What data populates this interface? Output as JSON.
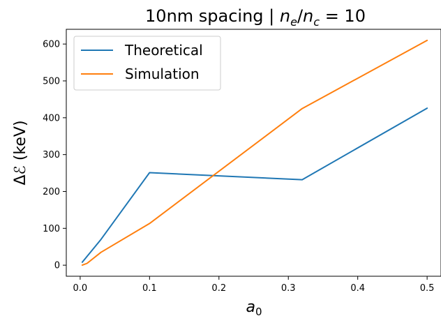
{
  "chart_data": {
    "type": "line",
    "title": "10nm spacing | nₑ/n꜀ = 10",
    "title_parts": {
      "prefix": "10nm spacing | ",
      "n": "n",
      "sub_e": "e",
      "slash": "/",
      "sub_c": "c",
      "suffix": " = 10"
    },
    "xlabel": "a₀",
    "xlabel_parts": {
      "main": "a",
      "sub": "0"
    },
    "ylabel": "Δℰ  (keV)",
    "xlim": [
      -0.02,
      0.52
    ],
    "ylim": [
      -30,
      640
    ],
    "xticks": [
      0.0,
      0.1,
      0.2,
      0.3,
      0.4,
      0.5
    ],
    "xtick_labels": [
      "0.0",
      "0.1",
      "0.2",
      "0.3",
      "0.4",
      "0.5"
    ],
    "yticks": [
      0,
      100,
      200,
      300,
      400,
      500,
      600
    ],
    "ytick_labels": [
      "0",
      "100",
      "200",
      "300",
      "400",
      "500",
      "600"
    ],
    "grid": false,
    "legend_position": "top-left",
    "series": [
      {
        "name": "Theoretical",
        "color": "#1f77b4",
        "x": [
          0.003,
          0.03,
          0.1,
          0.32,
          0.5
        ],
        "y": [
          8,
          70,
          251,
          232,
          426
        ]
      },
      {
        "name": "Simulation",
        "color": "#ff7f0e",
        "x": [
          0.003,
          0.01,
          0.03,
          0.1,
          0.32,
          0.5
        ],
        "y": [
          0,
          5,
          35,
          113,
          425,
          610
        ]
      }
    ]
  }
}
